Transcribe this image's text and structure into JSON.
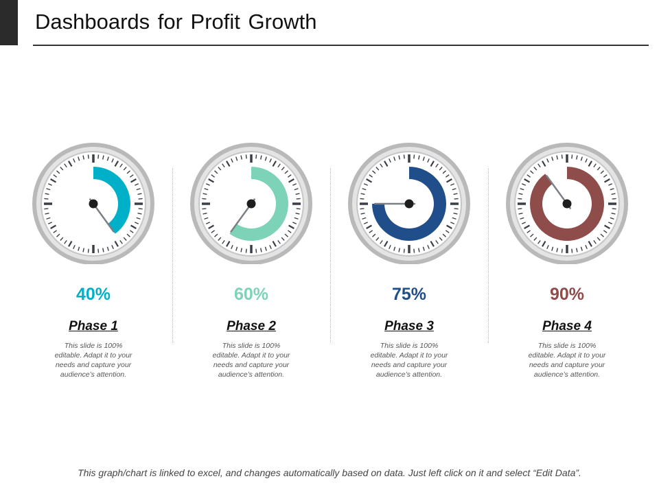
{
  "title": "Dashboards for Profit Growth",
  "footer": "This graph/chart is linked to excel, and changes automatically based on data. Just left click on it and select “Edit Data”.",
  "chart_data": {
    "type": "gauge",
    "categories": [
      "Phase 1",
      "Phase 2",
      "Phase 3",
      "Phase 4"
    ],
    "values": [
      40,
      60,
      75,
      90
    ],
    "value_labels": [
      "40%",
      "60%",
      "75%",
      "90%"
    ],
    "ylim": [
      0,
      100
    ],
    "colors": [
      "#00b0c9",
      "#7dd3b7",
      "#1f4e8a",
      "#8e4c4b"
    ],
    "descriptions": [
      "This slide is 100% editable. Adapt it to your needs and capture your audience’s attention.",
      "This slide is 100% editable. Adapt it to your needs and capture your audience’s attention.",
      "This slide is 100% editable. Adapt it to your needs and capture your audience’s attention.",
      "This slide is 100% editable. Adapt it to your needs and capture your audience’s attention."
    ]
  }
}
